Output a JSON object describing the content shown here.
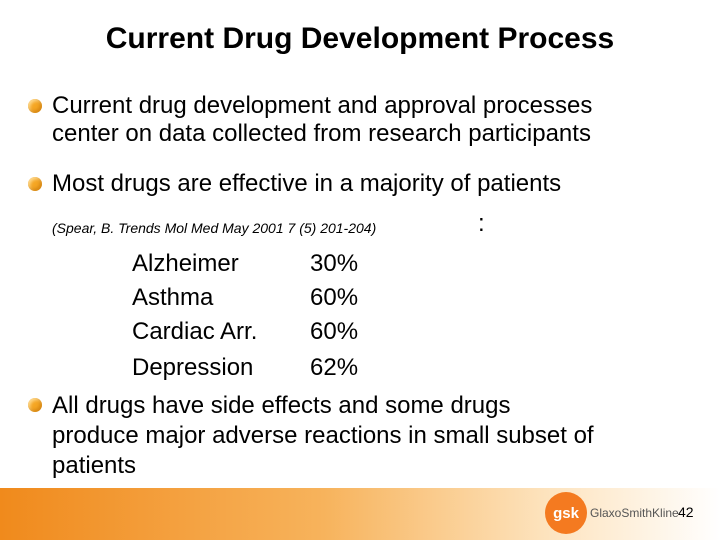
{
  "title": "Current Drug Development Process",
  "bullets": [
    {
      "lines": [
        "Current drug development and approval processes",
        "center on data collected from research participants"
      ]
    },
    {
      "lines": [
        "Most drugs are effective in a majority of patients"
      ]
    },
    {
      "lines": [
        "All drugs have side effects and some drugs",
        "produce major adverse reactions in small subset of",
        "patients"
      ]
    }
  ],
  "citation": "(Spear, B. Trends Mol Med May 2001 7 (5) 201-204)",
  "citation_colon": ":",
  "efficacy": [
    {
      "condition": "Alzheimer",
      "rate": "30%"
    },
    {
      "condition": "Asthma",
      "rate": "60%"
    },
    {
      "condition": "Cardiac Arr.",
      "rate": "60%"
    },
    {
      "condition": "Depression",
      "rate": "62%"
    }
  ],
  "logo": {
    "mark": "gsk",
    "name": "GlaxoSmithKline"
  },
  "page_number": "42",
  "colors": {
    "bullet": "#f5a623",
    "footer": "#f08a1c",
    "logo": "#f47a20"
  }
}
